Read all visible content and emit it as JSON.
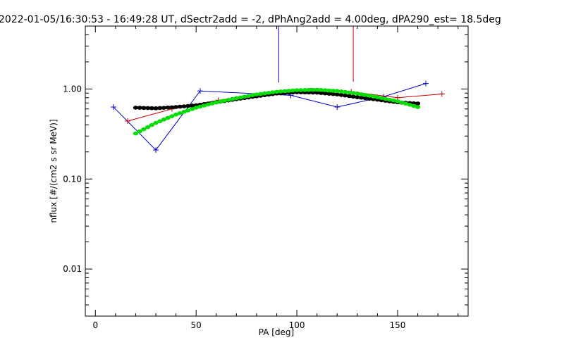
{
  "chart_data": {
    "type": "line",
    "title": "2022-01-05/16:30:53 - 16:49:28 UT, dSectr2add = -2, dPhAng2add = 4.00deg, dPA290_est=  18.5deg",
    "xlabel": "PA [deg]",
    "ylabel": "nflux [#/(cm2 s sr MeV)]",
    "xlim": [
      -5,
      185
    ],
    "ylim": [
      0.003,
      5.0
    ],
    "yscale": "log",
    "grid": false,
    "x_ticks": [
      0,
      50,
      100,
      150
    ],
    "x_tick_labels": [
      "0",
      "50",
      "100",
      "150"
    ],
    "y_ticks": [
      0.01,
      0.1,
      1.0
    ],
    "y_tick_labels": [
      "0.01",
      "0.10",
      "1.00"
    ],
    "series": [
      {
        "color": "#0000cc",
        "style": "line+plus",
        "x": [
          9,
          30,
          52,
          97,
          120,
          143,
          164
        ],
        "y": [
          0.63,
          0.21,
          0.95,
          0.85,
          0.63,
          0.82,
          1.15
        ]
      },
      {
        "color": "#cc0000",
        "style": "line+plus",
        "x": [
          16,
          38,
          61,
          84,
          107,
          127,
          150,
          172
        ],
        "y": [
          0.44,
          0.6,
          0.75,
          0.88,
          0.96,
          0.93,
          0.8,
          0.88
        ]
      },
      {
        "color": "#0000cc",
        "style": "vertical",
        "x": [
          91,
          91
        ],
        "y": [
          1.18,
          5.0
        ]
      },
      {
        "color": "#cc0000",
        "style": "vertical",
        "x": [
          128,
          128
        ],
        "y": [
          1.2,
          5.0
        ]
      },
      {
        "color": "#000000",
        "style": "thick-dots",
        "x": [
          20,
          30,
          40,
          50,
          60,
          70,
          80,
          90,
          100,
          110,
          120,
          130,
          140,
          150,
          160
        ],
        "y": [
          0.62,
          0.61,
          0.63,
          0.66,
          0.71,
          0.77,
          0.83,
          0.89,
          0.92,
          0.91,
          0.87,
          0.81,
          0.76,
          0.71,
          0.69
        ]
      },
      {
        "color": "#00dd00",
        "style": "thick-dots",
        "x": [
          20,
          30,
          40,
          50,
          60,
          70,
          80,
          90,
          100,
          110,
          120,
          130,
          140,
          150,
          160
        ],
        "y": [
          0.32,
          0.42,
          0.52,
          0.62,
          0.71,
          0.79,
          0.87,
          0.93,
          0.97,
          0.98,
          0.95,
          0.89,
          0.81,
          0.73,
          0.63
        ]
      }
    ]
  }
}
